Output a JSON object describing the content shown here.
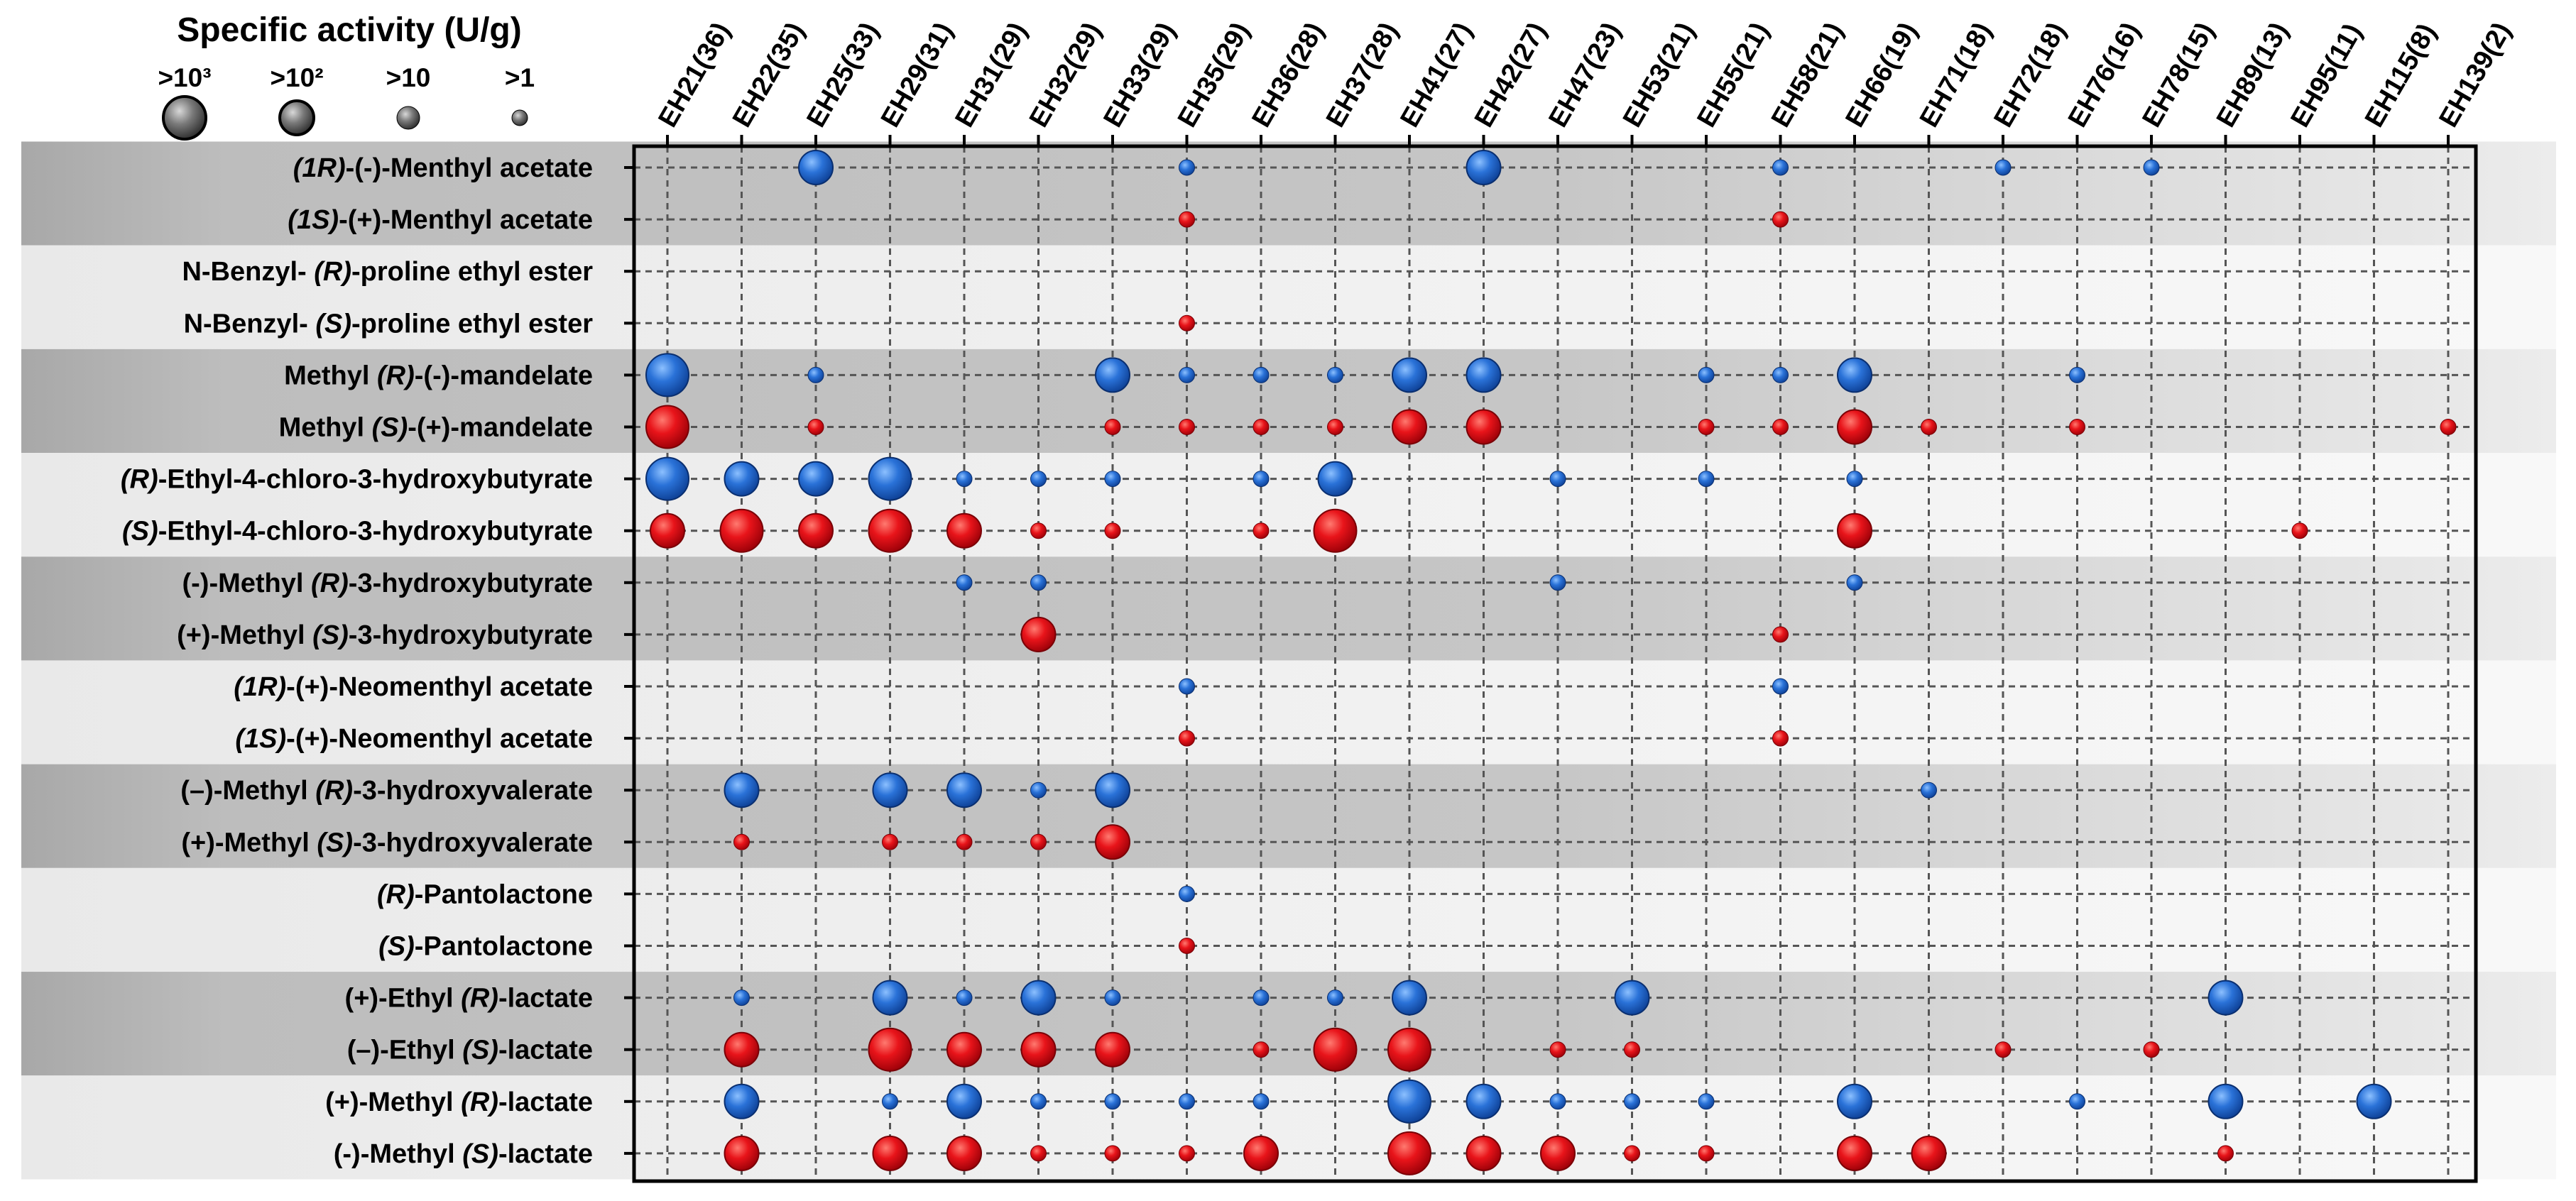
{
  "chart_data": {
    "type": "bubble-matrix",
    "legend": {
      "title": "Specific activity (U/g)",
      "levels": [
        {
          "label": ">10³",
          "level": 4
        },
        {
          "label": ">10²",
          "level": 3
        },
        {
          "label": ">10",
          "level": 2
        },
        {
          "label": ">1",
          "level": 1
        }
      ]
    },
    "level_meaning": {
      "1": ">1 U/g",
      "2": ">10 U/g",
      "3": ">10² U/g",
      "4": ">10³ U/g"
    },
    "colors": {
      "R_enantiomer": "#2a72d8",
      "S_enantiomer": "#e8141a",
      "band_dark": "#c4c4c4",
      "band_light": "#f2f2f2",
      "grid": "#555555"
    },
    "enzymes": [
      "EH21(36)",
      "EH22(35)",
      "EH25(33)",
      "EH29(31)",
      "EH31(29)",
      "EH32(29)",
      "EH33(29)",
      "EH35(29)",
      "EH36(28)",
      "EH37(28)",
      "EH41(27)",
      "EH42(27)",
      "EH47(23)",
      "EH53(21)",
      "EH55(21)",
      "EH58(21)",
      "EH66(19)",
      "EH71(18)",
      "EH72(18)",
      "EH76(16)",
      "EH78(15)",
      "EH89(13)",
      "EH95(11)",
      "EH115(8)",
      "EH139(2)"
    ],
    "substrates": [
      {
        "pre": "",
        "ital": "(1R)",
        "post": "-(-)-Menthyl acetate",
        "color": "blue",
        "points": [
          [
            2,
            3
          ],
          [
            7,
            1
          ],
          [
            11,
            3
          ],
          [
            15,
            1
          ],
          [
            18,
            1
          ],
          [
            20,
            1
          ]
        ]
      },
      {
        "pre": "",
        "ital": "(1S)",
        "post": "-(+)-Menthyl acetate",
        "color": "red",
        "points": [
          [
            7,
            1
          ],
          [
            15,
            1
          ]
        ]
      },
      {
        "pre": "N-Benzyl-",
        "ital": "(R)",
        "post": "-proline ethyl ester",
        "color": "blue",
        "points": []
      },
      {
        "pre": "N-Benzyl-",
        "ital": "(S)",
        "post": "-proline ethyl ester",
        "color": "red",
        "points": [
          [
            7,
            1
          ]
        ]
      },
      {
        "pre": "Methyl",
        "ital": "(R)",
        "post": "-(-)-mandelate",
        "color": "blue",
        "points": [
          [
            0,
            4
          ],
          [
            2,
            1
          ],
          [
            6,
            3
          ],
          [
            7,
            1
          ],
          [
            8,
            1
          ],
          [
            9,
            1
          ],
          [
            10,
            3
          ],
          [
            11,
            3
          ],
          [
            14,
            1
          ],
          [
            15,
            1
          ],
          [
            16,
            3
          ],
          [
            19,
            1
          ]
        ]
      },
      {
        "pre": "Methyl",
        "ital": "(S)",
        "post": "-(+)-mandelate",
        "color": "red",
        "points": [
          [
            0,
            4
          ],
          [
            2,
            1
          ],
          [
            6,
            1
          ],
          [
            7,
            1
          ],
          [
            8,
            1
          ],
          [
            9,
            1
          ],
          [
            10,
            3
          ],
          [
            11,
            3
          ],
          [
            14,
            1
          ],
          [
            15,
            1
          ],
          [
            16,
            3
          ],
          [
            17,
            1
          ],
          [
            19,
            1
          ],
          [
            24,
            1
          ]
        ]
      },
      {
        "pre": "",
        "ital": "(R)",
        "post": "-Ethyl-4-chloro-3-hydroxybutyrate",
        "color": "blue",
        "points": [
          [
            0,
            4
          ],
          [
            1,
            3
          ],
          [
            2,
            3
          ],
          [
            3,
            4
          ],
          [
            4,
            1
          ],
          [
            5,
            1
          ],
          [
            6,
            1
          ],
          [
            8,
            1
          ],
          [
            9,
            3
          ],
          [
            12,
            1
          ],
          [
            14,
            1
          ],
          [
            16,
            1
          ]
        ]
      },
      {
        "pre": "",
        "ital": "(S)",
        "post": "-Ethyl-4-chloro-3-hydroxybutyrate",
        "color": "red",
        "points": [
          [
            0,
            3
          ],
          [
            1,
            4
          ],
          [
            2,
            3
          ],
          [
            3,
            4
          ],
          [
            4,
            3
          ],
          [
            5,
            1
          ],
          [
            6,
            1
          ],
          [
            8,
            1
          ],
          [
            9,
            4
          ],
          [
            16,
            3
          ],
          [
            22,
            1
          ]
        ]
      },
      {
        "pre": "(-)-Methyl",
        "ital": "(R)",
        "post": "-3-hydroxybutyrate",
        "color": "blue",
        "points": [
          [
            4,
            1
          ],
          [
            5,
            1
          ],
          [
            12,
            1
          ],
          [
            16,
            1
          ]
        ]
      },
      {
        "pre": "(+)-Methyl",
        "ital": "(S)",
        "post": "-3-hydroxybutyrate",
        "color": "red",
        "points": [
          [
            5,
            3
          ],
          [
            15,
            1
          ]
        ]
      },
      {
        "pre": "",
        "ital": "(1R)",
        "post": "-(+)-Neomenthyl acetate",
        "color": "blue",
        "points": [
          [
            7,
            1
          ],
          [
            15,
            1
          ]
        ]
      },
      {
        "pre": "",
        "ital": "(1S)",
        "post": "-(+)-Neomenthyl acetate",
        "color": "red",
        "points": [
          [
            7,
            1
          ],
          [
            15,
            1
          ]
        ]
      },
      {
        "pre": "(–)-Methyl",
        "ital": "(R)",
        "post": "-3-hydroxyvalerate",
        "color": "blue",
        "points": [
          [
            1,
            3
          ],
          [
            3,
            3
          ],
          [
            4,
            3
          ],
          [
            5,
            1
          ],
          [
            6,
            3
          ],
          [
            17,
            1
          ]
        ]
      },
      {
        "pre": "(+)-Methyl",
        "ital": "(S)",
        "post": "-3-hydroxyvalerate",
        "color": "red",
        "points": [
          [
            1,
            1
          ],
          [
            3,
            1
          ],
          [
            4,
            1
          ],
          [
            5,
            1
          ],
          [
            6,
            3
          ]
        ]
      },
      {
        "pre": "",
        "ital": "(R)",
        "post": "-Pantolactone",
        "color": "blue",
        "points": [
          [
            7,
            1
          ]
        ]
      },
      {
        "pre": "",
        "ital": "(S)",
        "post": "-Pantolactone",
        "color": "red",
        "points": [
          [
            7,
            1
          ]
        ]
      },
      {
        "pre": "(+)-Ethyl",
        "ital": "(R)",
        "post": "-lactate",
        "color": "blue",
        "points": [
          [
            1,
            1
          ],
          [
            3,
            3
          ],
          [
            4,
            1
          ],
          [
            5,
            3
          ],
          [
            6,
            1
          ],
          [
            8,
            1
          ],
          [
            9,
            1
          ],
          [
            10,
            3
          ],
          [
            13,
            3
          ],
          [
            21,
            3
          ]
        ]
      },
      {
        "pre": "(–)-Ethyl",
        "ital": "(S)",
        "post": "-lactate",
        "color": "red",
        "points": [
          [
            1,
            3
          ],
          [
            3,
            4
          ],
          [
            4,
            3
          ],
          [
            5,
            3
          ],
          [
            6,
            3
          ],
          [
            8,
            1
          ],
          [
            9,
            4
          ],
          [
            10,
            4
          ],
          [
            12,
            1
          ],
          [
            13,
            1
          ],
          [
            18,
            1
          ],
          [
            20,
            1
          ]
        ]
      },
      {
        "pre": "(+)-Methyl",
        "ital": "(R)",
        "post": "-lactate",
        "color": "blue",
        "points": [
          [
            1,
            3
          ],
          [
            3,
            1
          ],
          [
            4,
            3
          ],
          [
            5,
            1
          ],
          [
            6,
            1
          ],
          [
            7,
            1
          ],
          [
            8,
            1
          ],
          [
            10,
            4
          ],
          [
            11,
            3
          ],
          [
            12,
            1
          ],
          [
            13,
            1
          ],
          [
            14,
            1
          ],
          [
            16,
            3
          ],
          [
            19,
            1
          ],
          [
            21,
            3
          ],
          [
            23,
            3
          ]
        ]
      },
      {
        "pre": "(-)-Methyl",
        "ital": "(S)",
        "post": "-lactate",
        "color": "red",
        "points": [
          [
            1,
            3
          ],
          [
            3,
            3
          ],
          [
            4,
            3
          ],
          [
            5,
            1
          ],
          [
            6,
            1
          ],
          [
            7,
            1
          ],
          [
            8,
            3
          ],
          [
            10,
            4
          ],
          [
            11,
            3
          ],
          [
            12,
            3
          ],
          [
            13,
            1
          ],
          [
            14,
            1
          ],
          [
            16,
            3
          ],
          [
            17,
            3
          ],
          [
            21,
            1
          ]
        ]
      }
    ]
  }
}
